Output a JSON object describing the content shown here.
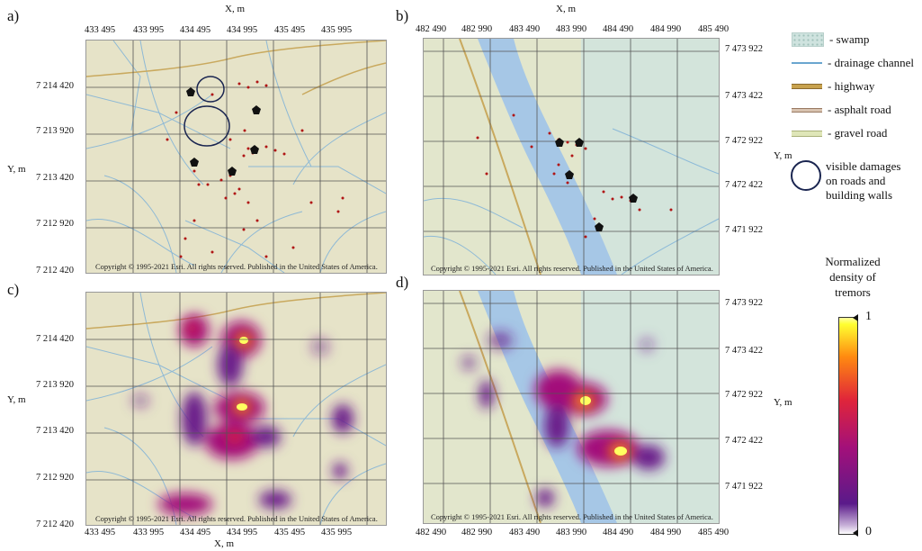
{
  "panels": {
    "a": {
      "letter": "a)",
      "xaxis": "X, m",
      "yaxis": "Y, m",
      "xticks": [
        "433 495",
        "433 995",
        "434 495",
        "434 995",
        "435 495",
        "435 995"
      ],
      "yticks": [
        "7 214 420",
        "7 213 920",
        "7 213 420",
        "7 212 920",
        "7 212 420"
      ]
    },
    "b": {
      "letter": "b)",
      "xaxis": "X, m",
      "yaxis": "Y, m",
      "xticks": [
        "482 490",
        "482 990",
        "483 490",
        "483 990",
        "484 490",
        "484 990",
        "485 490"
      ],
      "yticks": [
        "7 473 922",
        "7 473 422",
        "7 472 922",
        "7 472 422",
        "7 471 922"
      ]
    },
    "c": {
      "letter": "c)",
      "xaxis": "X, m",
      "yaxis": "Y, m",
      "xticks": [
        "433 495",
        "433 995",
        "434 495",
        "434 995",
        "435 495",
        "435 995"
      ],
      "yticks": [
        "7 214 420",
        "7 213 920",
        "7 213 420",
        "7 212 920",
        "7 212 420"
      ]
    },
    "d": {
      "letter": "d)",
      "xaxis": "",
      "yaxis": "Y, m",
      "xticks": [
        "482 490",
        "482 990",
        "483 490",
        "483 990",
        "484 490",
        "484 990",
        "485 490"
      ],
      "yticks": [
        "7 473 922",
        "7 473 422",
        "7 472 922",
        "7 472 422",
        "7 471 922"
      ]
    }
  },
  "copyright": "Copyright © 1995-2021 Esri. All rights reserved. Published in the United States of America.",
  "legend": {
    "items": [
      {
        "label": "- swamp",
        "icon": "swamp-swatch",
        "color": "#cfe3df"
      },
      {
        "label": "- drainage channel",
        "icon": "drainage-line",
        "color": "#6aa6cf"
      },
      {
        "label": "- highway",
        "icon": "highway-line",
        "color": "#c8a24e"
      },
      {
        "label": "- asphalt road",
        "icon": "asphalt-line",
        "color": "#b08a6e"
      },
      {
        "label": "- gravel road",
        "icon": "gravel-line",
        "color": "#c7cf9a"
      }
    ],
    "damage_label_1": "visible damages",
    "damage_label_2": "on roads and",
    "damage_label_3": "building walls"
  },
  "colorbar": {
    "title_1": "Normalized",
    "title_2": "density of",
    "title_3": "tremors",
    "max_label": "1",
    "min_label": "0",
    "colors": [
      "#ffffff",
      "#5a1a8a",
      "#a3107a",
      "#e0253a",
      "#ff8a10",
      "#ffff30"
    ]
  },
  "map_colors": {
    "land": "#e5e2c6",
    "river": "#a6c7e6",
    "grid": "#555555",
    "event": "#b01515"
  }
}
